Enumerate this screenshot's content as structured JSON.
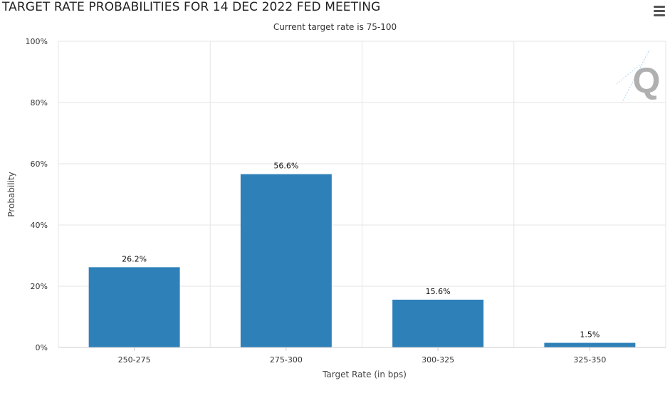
{
  "header": {
    "title": "TARGET RATE PROBABILITIES FOR 14 DEC 2022 FED MEETING",
    "subtitle": "Current target rate is 75-100"
  },
  "toolbar": {
    "menu_icon": "hamburger-menu-icon"
  },
  "watermark": {
    "letter": "Q",
    "color": "#b0b0b0",
    "accent": "#4aa8d8"
  },
  "colors": {
    "bar": "#2e80b9",
    "grid": "#e6e6e6",
    "axis": "#cccccc"
  },
  "chart_data": {
    "type": "bar",
    "title": "TARGET RATE PROBABILITIES FOR 14 DEC 2022 FED MEETING",
    "subtitle": "Current target rate is 75-100",
    "xlabel": "Target Rate (in bps)",
    "ylabel": "Probability",
    "categories": [
      "250-275",
      "275-300",
      "300-325",
      "325-350"
    ],
    "values": [
      26.2,
      56.6,
      15.6,
      1.5
    ],
    "data_labels": [
      "26.2%",
      "56.6%",
      "15.6%",
      "1.5%"
    ],
    "ylim": [
      0,
      100
    ],
    "yticks": [
      0,
      20,
      40,
      60,
      80,
      100
    ],
    "ytick_labels": [
      "0%",
      "20%",
      "40%",
      "60%",
      "80%",
      "100%"
    ],
    "grid": true,
    "legend": "none"
  }
}
